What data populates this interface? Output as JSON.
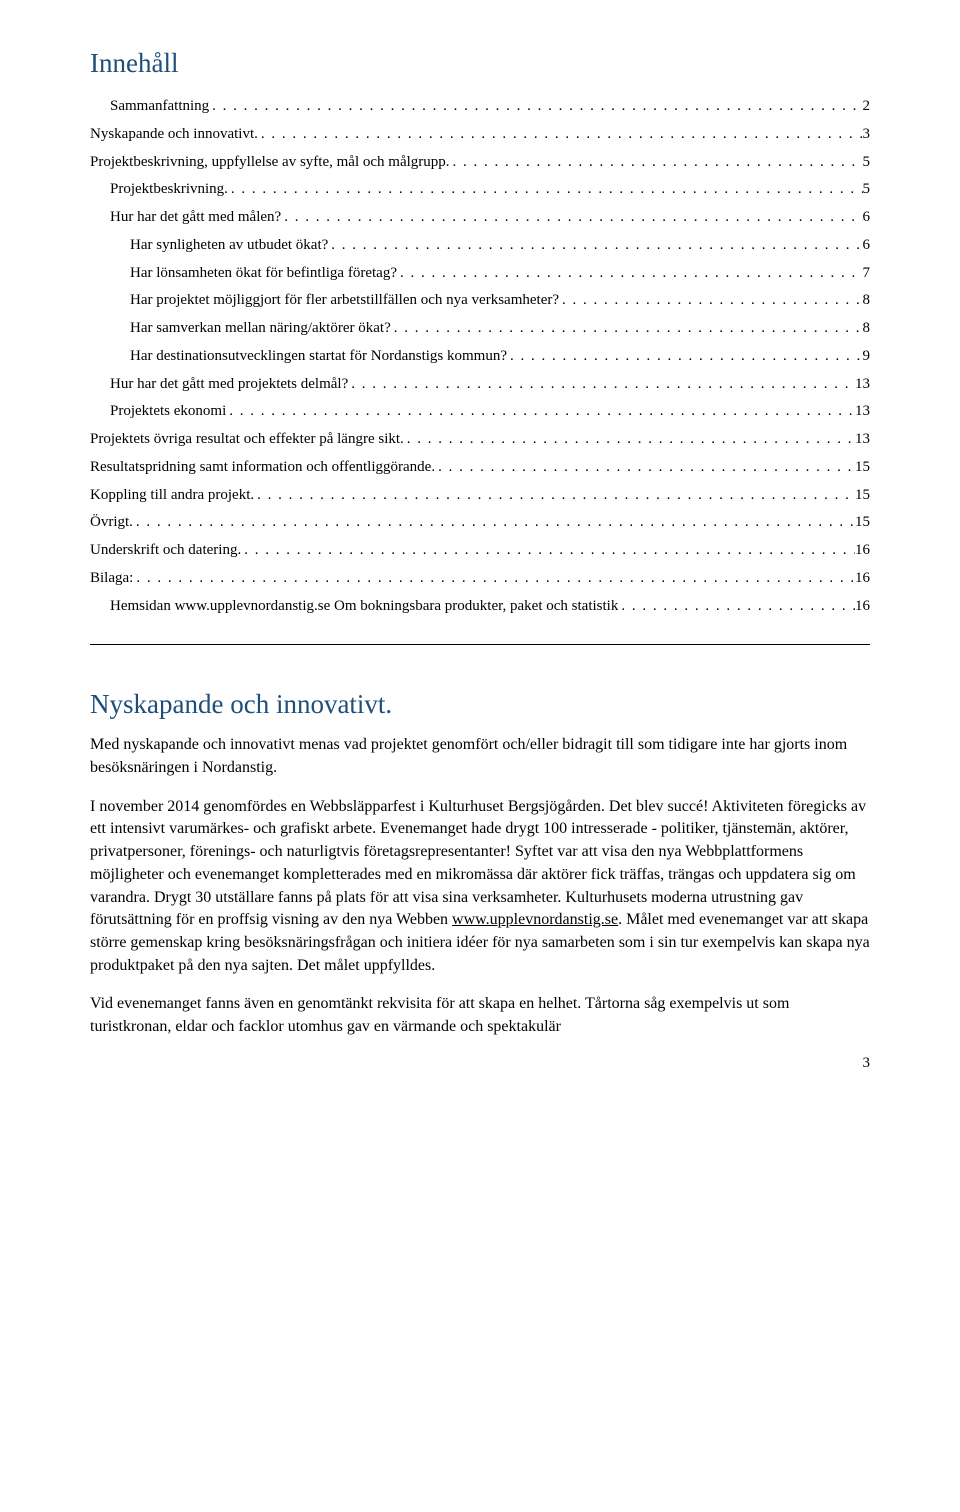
{
  "toc_heading": "Innehåll",
  "toc": [
    {
      "label": "Sammanfattning",
      "page": "2",
      "indent": 1
    },
    {
      "label": "Nyskapande och innovativt.",
      "page": "3",
      "indent": 0
    },
    {
      "label": "Projektbeskrivning, uppfyllelse av syfte, mål och målgrupp.",
      "page": "5",
      "indent": 0
    },
    {
      "label": "Projektbeskrivning.",
      "page": "5",
      "indent": 1
    },
    {
      "label": "Hur har det gått med målen?",
      "page": "6",
      "indent": 1
    },
    {
      "label": "Har synligheten av utbudet ökat?",
      "page": "6",
      "indent": 2
    },
    {
      "label": "Har lönsamheten ökat för befintliga företag?",
      "page": "7",
      "indent": 2
    },
    {
      "label": "Har projektet möjliggjort för fler arbetstillfällen och nya verksamheter?",
      "page": "8",
      "indent": 2
    },
    {
      "label": "Har samverkan mellan näring/aktörer ökat?",
      "page": "8",
      "indent": 2
    },
    {
      "label": "Har destinationsutvecklingen startat för Nordanstigs kommun?",
      "page": "9",
      "indent": 2
    },
    {
      "label": "Hur har det gått med projektets delmål?",
      "page": "13",
      "indent": 1
    },
    {
      "label": "Projektets ekonomi",
      "page": "13",
      "indent": 1
    },
    {
      "label": "Projektets övriga resultat och effekter på längre sikt.",
      "page": "13",
      "indent": 0
    },
    {
      "label": "Resultatspridning samt information och offentliggörande.",
      "page": "15",
      "indent": 0
    },
    {
      "label": "Koppling till andra projekt.",
      "page": "15",
      "indent": 0
    },
    {
      "label": "Övrigt.",
      "page": "15",
      "indent": 0
    },
    {
      "label": "Underskrift och datering.",
      "page": "16",
      "indent": 0
    },
    {
      "label": "Bilaga:",
      "page": "16",
      "indent": 0
    },
    {
      "label": "Hemsidan www.upplevnordanstig.se Om bokningsbara produkter, paket och statistik",
      "page": "16",
      "indent": 1
    }
  ],
  "section_heading": "Nyskapande och innovativt.",
  "para1": "Med nyskapande och innovativt menas vad projektet genomfört och/eller bidragit till som tidigare inte har gjorts inom besöksnäringen i Nordanstig.",
  "para2_a": "I november 2014 genomfördes en Webbsläpparfest i Kulturhuset Bergsjögården. Det blev succé! Aktiviteten föregicks av ett intensivt varumärkes- och grafiskt arbete. Evenemanget hade drygt 100 intresserade - politiker, tjänstemän, aktörer, privatpersoner, förenings- och naturligtvis företagsrepresentanter! Syftet var att visa den nya Webbplattformens möjligheter och evenemanget kompletterades med en mikromässa där aktörer fick träffas, trängas och uppdatera sig om varandra. Drygt 30 utställare fanns på plats för att visa sina verksamheter. Kulturhusets moderna utrustning gav förutsättning för en proffsig visning av den nya Webben ",
  "para2_link": "www.upplevnordanstig.se",
  "para2_b": ". Målet med evenemanget var att skapa större gemenskap kring besöksnäringsfrågan och initiera idéer för nya samarbeten som i sin tur exempelvis kan skapa nya produktpaket på den nya sajten. Det målet uppfylldes.",
  "para3": "Vid evenemanget fanns även en genomtänkt rekvisita för att skapa en helhet. Tårtorna såg exempelvis ut som turistkronan, eldar och facklor utomhus gav en värmande och spektakulär",
  "page_number": "3"
}
